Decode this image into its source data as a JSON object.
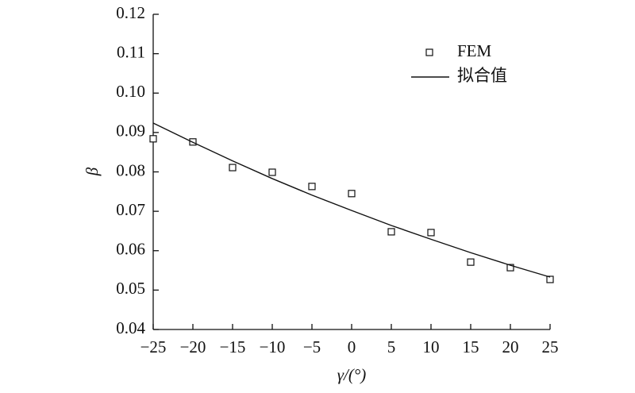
{
  "chart_data": {
    "type": "scatter-line",
    "x_label": "γ/(°)",
    "y_label": "β",
    "x": [
      -25,
      -20,
      -15,
      -10,
      -5,
      0,
      5,
      10,
      15,
      20,
      25
    ],
    "series": [
      {
        "name": "FEM",
        "style": "marker",
        "color": "#111111",
        "values": [
          0.0884,
          0.0876,
          0.0811,
          0.0799,
          0.0763,
          0.0745,
          0.0648,
          0.0646,
          0.0571,
          0.0557,
          0.0527
        ]
      },
      {
        "name": "拟合值",
        "style": "line",
        "color": "#111111",
        "values": [
          0.0924,
          0.0875,
          0.0828,
          0.0783,
          0.0741,
          0.0702,
          0.0664,
          0.0629,
          0.0595,
          0.0563,
          0.0533
        ]
      }
    ],
    "xlim": [
      -25,
      25
    ],
    "xticks": [
      {
        "value": -25,
        "label": "−25"
      },
      {
        "value": -20,
        "label": "−20"
      },
      {
        "value": -15,
        "label": "−15"
      },
      {
        "value": -10,
        "label": "−10"
      },
      {
        "value": -5,
        "label": "−5"
      },
      0,
      5,
      10,
      15,
      20,
      25
    ],
    "ylim": [
      0.04,
      0.12
    ],
    "yticks": [
      0.04,
      0.05,
      0.06,
      0.07,
      0.08,
      0.09,
      {
        "value": 0.1,
        "label": "0.10"
      },
      0.11,
      0.12
    ],
    "legend": "upper-right",
    "grid": false
  }
}
